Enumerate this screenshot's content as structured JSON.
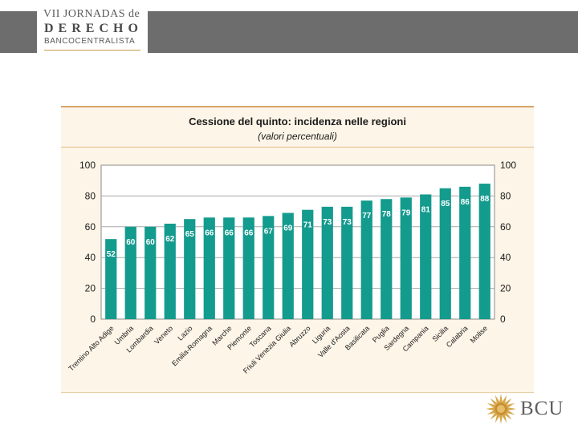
{
  "header": {
    "line1": "VII JORNADAS de",
    "line2": "DERECHO",
    "line3": "BANCOCENTRALISTA"
  },
  "footer": {
    "logo_text": "BCU"
  },
  "colors": {
    "bar": "#139b8e",
    "panel": "#fdf5e7",
    "accent": "#d8a56a",
    "header_bar": "#6d6d6d"
  },
  "chart_data": {
    "type": "bar",
    "title": "Cessione del quinto: incidenza nelle regioni",
    "subtitle": "(valori percentuali)",
    "xlabel": "",
    "ylabel": "",
    "ylim": [
      0,
      100
    ],
    "yticks": [
      0,
      20,
      40,
      60,
      80,
      100
    ],
    "grid": true,
    "categories": [
      "Trentino Alto Adige",
      "Umbria",
      "Lombardia",
      "Veneto",
      "Lazio",
      "Emilia-Romagna",
      "Marche",
      "Piemonte",
      "Toscana",
      "Friuli Venezia Giulia",
      "Abruzzo",
      "Liguria",
      "Valle d'Aosta",
      "Basilicata",
      "Puglia",
      "Sardegna",
      "Campania",
      "Sicilia",
      "Calabria",
      "Molise"
    ],
    "values": [
      52,
      60,
      60,
      62,
      65,
      66,
      66,
      66,
      67,
      69,
      71,
      73,
      73,
      77,
      78,
      79,
      81,
      85,
      86,
      88
    ]
  }
}
